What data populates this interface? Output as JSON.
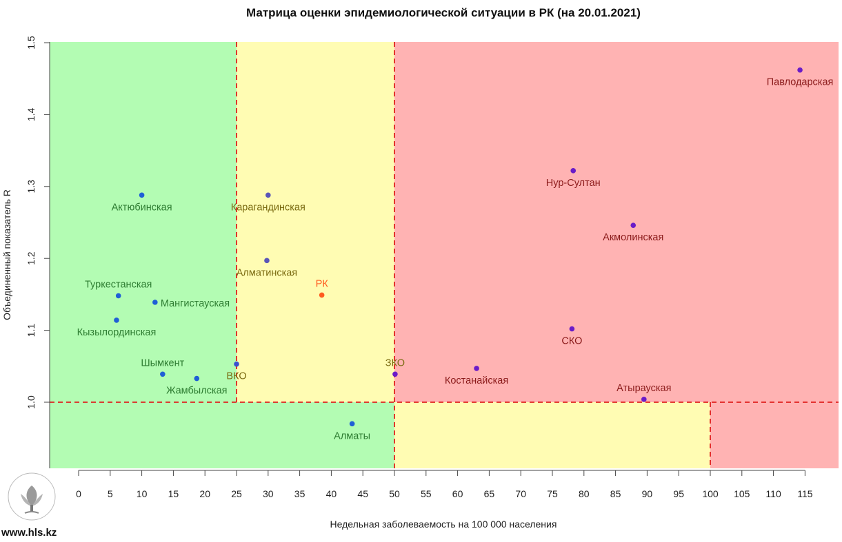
{
  "site_url": "www.hls.kz",
  "logo_text": "ҚОҒАМДЫҚ ДЕНСАУЛЫҚ САҚТАУ ҰЛТТЫҚ ОРТАЛЫҒЫ",
  "colors": {
    "green_zone": "#b3fcb3",
    "yellow_zone": "#fffcb3",
    "red_zone": "#ffb3b3",
    "threshold_line": "#e0201e",
    "label_green": "#2e7d32",
    "label_yellow": "#7a6a10",
    "label_red": "#8b1a1a",
    "label_rk": "#ff5a1f"
  },
  "chart_data": {
    "type": "scatter",
    "title": "Матрица оценки эпидемиологической ситуации в РК (на 20.01.2021)",
    "xlabel": "Недельная заболеваемость на 100 000 населения",
    "ylabel": "Объединенный показатель R",
    "xlim": [
      -5,
      120
    ],
    "ylim": [
      0.9,
      1.5
    ],
    "x_ticks": [
      0,
      5,
      10,
      15,
      20,
      25,
      30,
      35,
      40,
      45,
      50,
      55,
      60,
      65,
      70,
      75,
      80,
      85,
      90,
      95,
      100,
      105,
      110,
      115
    ],
    "x_tick_labels": [
      "0",
      "5",
      "10",
      "15",
      "20",
      "25",
      "30",
      "35",
      "40",
      "45",
      "50",
      "55",
      "60",
      "65",
      "70",
      "75",
      "80",
      "85",
      "90",
      "95",
      "100",
      "105",
      "110",
      "115"
    ],
    "y_ticks": [
      1.0,
      1.1,
      1.2,
      1.3,
      1.4,
      1.5
    ],
    "y_tick_labels": [
      "1.0",
      "1.1",
      "1.2",
      "1.3",
      "1.4",
      "1.5"
    ],
    "grid": false,
    "thresholds": {
      "x": [
        25,
        50,
        100
      ],
      "y": 1.0
    },
    "points": [
      {
        "name": "Актюбинская",
        "x": 10.0,
        "y": 1.288,
        "color": "#1f5fd6",
        "label_color": "green",
        "label_pos": "below"
      },
      {
        "name": "Туркестанская",
        "x": 6.3,
        "y": 1.148,
        "color": "#1f5fd6",
        "label_color": "green",
        "label_pos": "above"
      },
      {
        "name": "Мангистауская",
        "x": 12.1,
        "y": 1.139,
        "color": "#1f5fd6",
        "label_color": "green",
        "label_pos": "right"
      },
      {
        "name": "Кызылординская",
        "x": 6.0,
        "y": 1.114,
        "color": "#1f5fd6",
        "label_color": "green",
        "label_pos": "below"
      },
      {
        "name": "Шымкент",
        "x": 13.3,
        "y": 1.039,
        "color": "#1f5fd6",
        "label_color": "green",
        "label_pos": "above"
      },
      {
        "name": "Жамбылская",
        "x": 18.7,
        "y": 1.033,
        "color": "#1f5fd6",
        "label_color": "green",
        "label_pos": "below"
      },
      {
        "name": "ВКО",
        "x": 25.0,
        "y": 1.053,
        "color": "#3a50d0",
        "label_color": "yellow",
        "label_pos": "below"
      },
      {
        "name": "Карагандинская",
        "x": 30.0,
        "y": 1.288,
        "color": "#5a55b8",
        "label_color": "yellow",
        "label_pos": "below"
      },
      {
        "name": "Алматинская",
        "x": 29.8,
        "y": 1.197,
        "color": "#5a55b8",
        "label_color": "yellow",
        "label_pos": "below"
      },
      {
        "name": "РК",
        "x": 38.5,
        "y": 1.149,
        "color": "#ff5a1f",
        "label_color": "rk",
        "label_pos": "above"
      },
      {
        "name": "Алматы",
        "x": 43.3,
        "y": 0.97,
        "color": "#1f5fd6",
        "label_color": "green",
        "label_pos": "below"
      },
      {
        "name": "ЗКО",
        "x": 50.1,
        "y": 1.039,
        "color": "#6a1cc8",
        "label_color": "yellow",
        "label_pos": "above"
      },
      {
        "name": "Костанайская",
        "x": 63.0,
        "y": 1.047,
        "color": "#6a1cc8",
        "label_color": "red",
        "label_pos": "below"
      },
      {
        "name": "Нур-Султан",
        "x": 78.3,
        "y": 1.322,
        "color": "#6a1cc8",
        "label_color": "red",
        "label_pos": "below"
      },
      {
        "name": "Акмолинская",
        "x": 87.8,
        "y": 1.246,
        "color": "#6a1cc8",
        "label_color": "red",
        "label_pos": "below"
      },
      {
        "name": "СКО",
        "x": 78.1,
        "y": 1.102,
        "color": "#6a1cc8",
        "label_color": "red",
        "label_pos": "below"
      },
      {
        "name": "Атырауская",
        "x": 89.5,
        "y": 1.004,
        "color": "#6a1cc8",
        "label_color": "red",
        "label_pos": "above"
      },
      {
        "name": "Павлодарская",
        "x": 114.2,
        "y": 1.462,
        "color": "#6a1cc8",
        "label_color": "red",
        "label_pos": "below"
      }
    ]
  }
}
